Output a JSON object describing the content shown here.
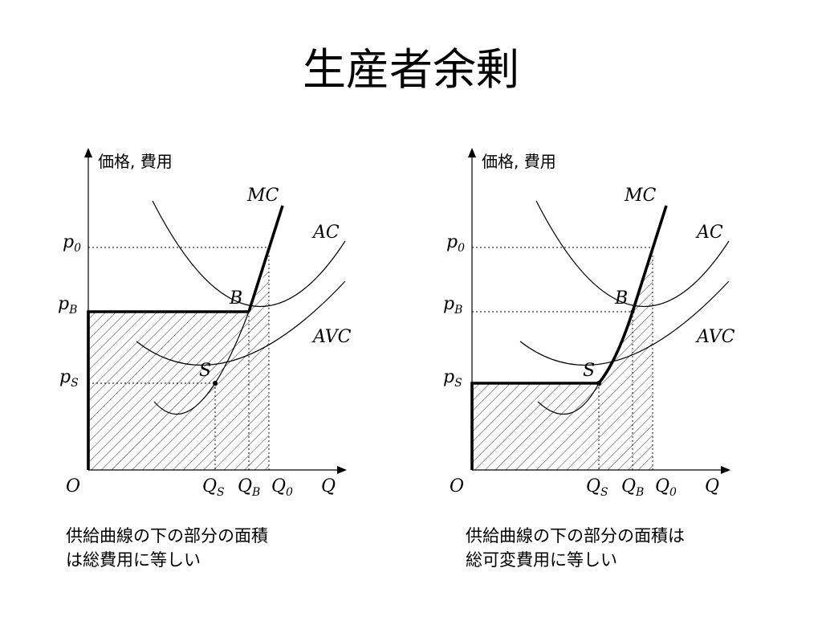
{
  "slide": {
    "title": "生産者余剰"
  },
  "panels": [
    {
      "axis_y_label": "価格, 費用",
      "labels": {
        "MC": "MC",
        "AC": "AC",
        "AVC": "AVC",
        "B": "B",
        "S": "S",
        "p0": "p",
        "p0_sub": "0",
        "pB": "p",
        "pB_sub": "B",
        "pS": "p",
        "pS_sub": "S",
        "O": "O",
        "QS": "Q",
        "QS_sub": "S",
        "QB": "Q",
        "QB_sub": "B",
        "Q0": "Q",
        "Q0_sub": "0",
        "Q": "Q"
      },
      "caption_lines": [
        "供給曲線の下の部分の面積",
        "は総費用に等しい"
      ]
    },
    {
      "axis_y_label": "価格, 費用",
      "labels": {
        "MC": "MC",
        "AC": "AC",
        "AVC": "AVC",
        "B": "B",
        "S": "S",
        "p0": "p",
        "p0_sub": "0",
        "pB": "p",
        "pB_sub": "B",
        "pS": "p",
        "pS_sub": "S",
        "O": "O",
        "QS": "Q",
        "QS_sub": "S",
        "QB": "Q",
        "QB_sub": "B",
        "Q0": "Q",
        "Q0_sub": "0",
        "Q": "Q"
      },
      "caption_lines": [
        "供給曲線の下の部分の面積は",
        "総可変費用に等しい"
      ]
    }
  ]
}
